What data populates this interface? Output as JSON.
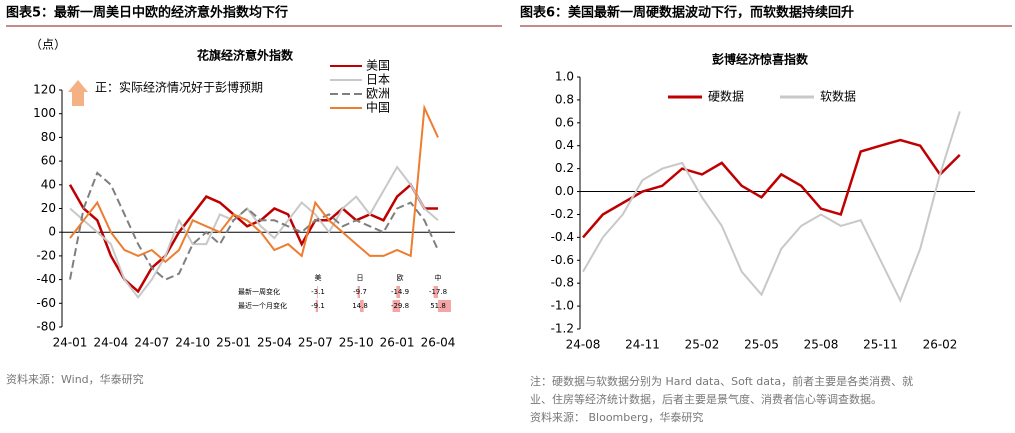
{
  "chart_data": [
    {
      "type": "line",
      "figure_title": "图表5：最新一周美日中欧的经济意外指数均下行",
      "title": "花旗经济意外指数",
      "unit": "（点）",
      "annotation": "正：实际经济情况好于彭博预期",
      "source": "资料来源：Wind，华泰研究",
      "x": [
        "24-01",
        "24-02",
        "24-03",
        "24-04",
        "24-05",
        "24-06",
        "24-07",
        "24-08",
        "24-09",
        "24-10",
        "24-11",
        "24-12",
        "25-01",
        "25-02",
        "25-03",
        "25-04",
        "25-05",
        "25-06",
        "25-07",
        "25-08",
        "25-09",
        "25-10",
        "25-11",
        "25-12",
        "26-01",
        "26-02",
        "26-03",
        "26-04"
      ],
      "xticks": [
        "24-01",
        "24-04",
        "24-07",
        "24-10",
        "25-01",
        "25-04",
        "25-07",
        "25-10",
        "26-01",
        "26-04"
      ],
      "ylim": [
        -80,
        120
      ],
      "yticks": [
        -80,
        -60,
        -40,
        -20,
        0,
        20,
        40,
        60,
        80,
        100,
        120
      ],
      "series": [
        {
          "name": "美国",
          "color": "#c00000",
          "style": "solid",
          "values": [
            40,
            20,
            10,
            -20,
            -40,
            -50,
            -30,
            -20,
            0,
            15,
            30,
            25,
            15,
            5,
            10,
            20,
            15,
            -10,
            10,
            10,
            20,
            10,
            15,
            10,
            30,
            40,
            20,
            20
          ]
        },
        {
          "name": "日本",
          "color": "#c8c8c8",
          "style": "solid",
          "values": [
            20,
            10,
            0,
            -10,
            -40,
            -55,
            -40,
            -20,
            10,
            -10,
            -10,
            15,
            10,
            20,
            5,
            -5,
            10,
            25,
            15,
            0,
            20,
            30,
            15,
            35,
            55,
            40,
            20,
            10
          ]
        },
        {
          "name": "欧洲",
          "color": "#7f7f7f",
          "style": "dashed",
          "values": [
            -40,
            20,
            50,
            40,
            15,
            -10,
            -30,
            -40,
            -35,
            -10,
            0,
            -10,
            10,
            20,
            10,
            10,
            5,
            0,
            10,
            15,
            5,
            10,
            5,
            0,
            20,
            25,
            10,
            -15
          ]
        },
        {
          "name": "中国",
          "color": "#ed7d31",
          "style": "solid",
          "values": [
            -5,
            10,
            25,
            0,
            -15,
            -20,
            -15,
            -25,
            -15,
            10,
            5,
            0,
            15,
            10,
            0,
            -15,
            -10,
            -20,
            25,
            10,
            0,
            -10,
            -20,
            -20,
            -15,
            -20,
            105,
            80
          ]
        }
      ],
      "table": {
        "columns": [
          "美",
          "日",
          "欧",
          "中"
        ],
        "rows": [
          {
            "label": "最新一周变化",
            "values": [
              -3.1,
              -9.7,
              -14.9,
              -17.8
            ]
          },
          {
            "label": "最近一个月变化",
            "values": [
              -9.1,
              14.8,
              -29.8,
              51.8
            ]
          }
        ]
      }
    },
    {
      "type": "line",
      "figure_title": "图表6：美国最新一周硬数据波动下行，而软数据持续回升",
      "title": "彭博经济惊喜指数",
      "note": [
        "注：硬数据与软数据分别为 Hard data、Soft data，前者主要是各类消费、就",
        "业、住房等经济统计数据，后者主要是景气度、消费者信心等调查数据。"
      ],
      "source": "资料来源： Bloomberg，华泰研究",
      "x": [
        "24-08",
        "24-09",
        "24-10",
        "24-11",
        "24-12",
        "25-01",
        "25-02",
        "25-03",
        "25-04",
        "25-05",
        "25-06",
        "25-07",
        "25-08",
        "25-09",
        "25-10",
        "25-11",
        "25-12",
        "26-01",
        "26-02",
        "26-03"
      ],
      "xticks": [
        "24-08",
        "24-11",
        "25-02",
        "25-05",
        "25-08",
        "25-11",
        "26-02"
      ],
      "ylim": [
        -1.2,
        1.0
      ],
      "yticks": [
        -1.2,
        {
          "value": -1.0,
          "label": "-1.0"
        },
        -0.8,
        -0.6,
        -0.4,
        -0.2,
        {
          "value": 0,
          "label": "0.0"
        },
        0.2,
        0.4,
        0.6,
        0.8,
        {
          "value": 1.0,
          "label": "1.0"
        }
      ],
      "series": [
        {
          "name": "硬数据",
          "color": "#c00000",
          "style": "solid",
          "values": [
            -0.4,
            -0.2,
            -0.1,
            0.0,
            0.05,
            0.2,
            0.15,
            0.25,
            0.05,
            -0.05,
            0.15,
            0.05,
            -0.15,
            -0.2,
            0.35,
            0.4,
            0.45,
            0.4,
            0.15,
            0.32
          ]
        },
        {
          "name": "软数据",
          "color": "#c8c8c8",
          "style": "solid",
          "values": [
            -0.7,
            -0.4,
            -0.2,
            0.1,
            0.2,
            0.25,
            -0.05,
            -0.3,
            -0.7,
            -0.9,
            -0.5,
            -0.3,
            -0.2,
            -0.3,
            -0.25,
            -0.6,
            -0.95,
            -0.5,
            0.15,
            0.7
          ]
        }
      ]
    }
  ]
}
